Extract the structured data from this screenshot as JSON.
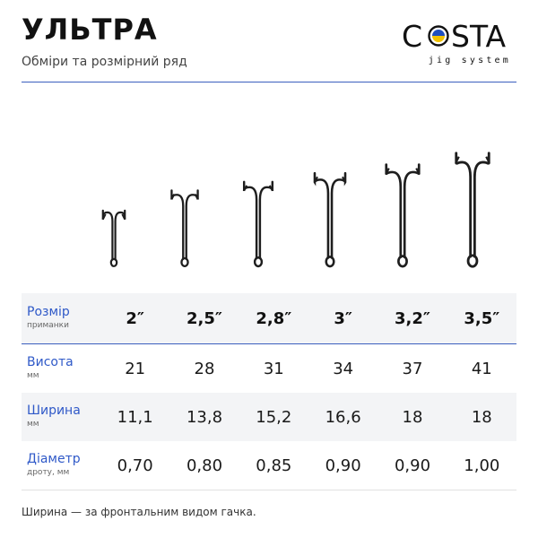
{
  "header": {
    "title": "УЛЬТРА",
    "subtitle": "Обміри та розмірний ряд"
  },
  "logo": {
    "wordmark": "COSTA",
    "tagline": "jig system",
    "accent_colors": [
      "#1f4fbf",
      "#f2c200"
    ]
  },
  "accent_color": "#3b5fbf",
  "label_color": "#2f59c8",
  "table": {
    "rows": [
      {
        "label": "Розмір",
        "sublabel": "приманки",
        "values": [
          "2″",
          "2,5″",
          "2,8″",
          "3″",
          "3,2″",
          "3,5″"
        ]
      },
      {
        "label": "Висота",
        "sublabel": "мм",
        "values": [
          "21",
          "28",
          "31",
          "34",
          "37",
          "41"
        ]
      },
      {
        "label": "Ширина",
        "sublabel": "мм",
        "values": [
          "11,1",
          "13,8",
          "15,2",
          "16,6",
          "18",
          "18"
        ]
      },
      {
        "label": "Діаметр",
        "sublabel": "дроту, мм",
        "values": [
          "0,70",
          "0,80",
          "0,85",
          "0,90",
          "0,90",
          "1,00"
        ]
      }
    ]
  },
  "hook_icons": [
    "double-hook-icon",
    "double-hook-icon",
    "double-hook-icon",
    "double-hook-icon",
    "double-hook-icon",
    "double-hook-icon"
  ],
  "footnote": "Ширина — за фронтальним видом гачка."
}
